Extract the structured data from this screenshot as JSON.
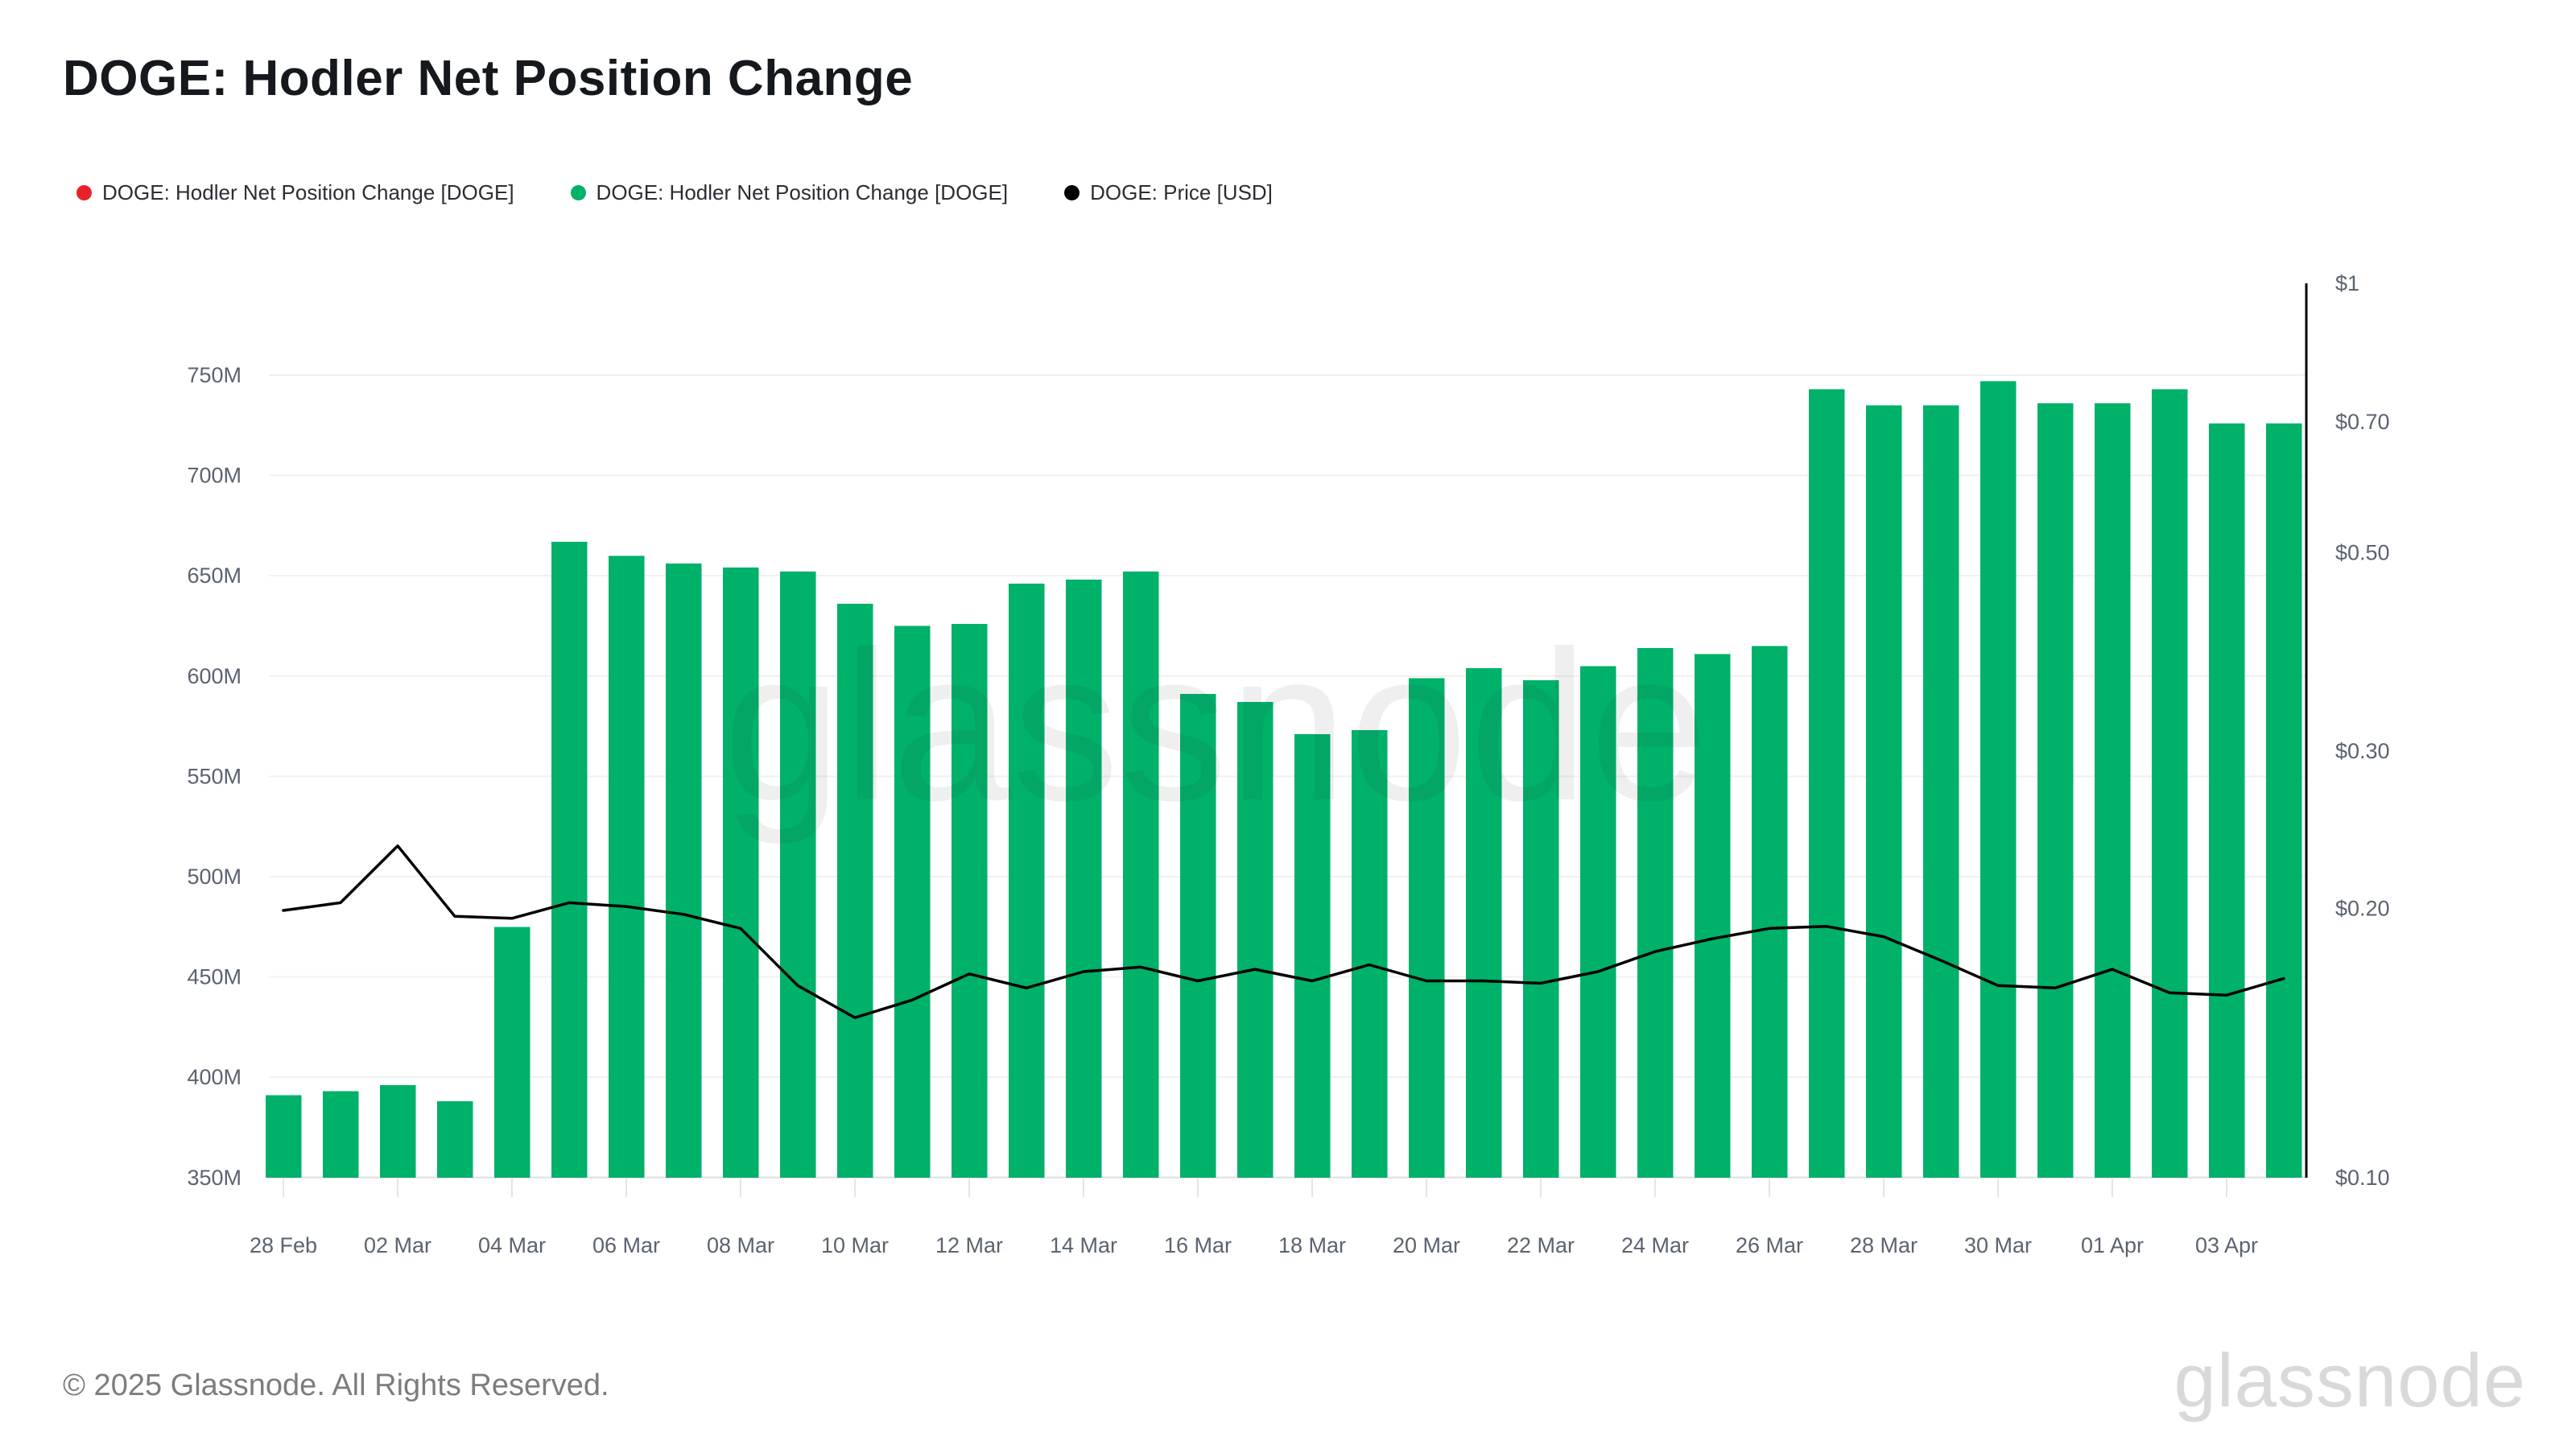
{
  "title": "DOGE: Hodler Net Position Change",
  "legend": [
    {
      "label": "DOGE: Hodler Net Position Change [DOGE]",
      "color": "#e8222a"
    },
    {
      "label": "DOGE: Hodler Net Position Change [DOGE]",
      "color": "#00b16a"
    },
    {
      "label": "DOGE: Price [USD]",
      "color": "#000000"
    }
  ],
  "watermark": {
    "center_text": "glassnode",
    "logo_text": "glassnode"
  },
  "footer": {
    "copyright": "© 2025 Glassnode. All Rights Reserved."
  },
  "colors": {
    "bar_green": "#00b16a",
    "price_line": "#000000",
    "gridline": "#f1f1f2",
    "axis_baseline": "#e3e5e7",
    "axis_text": "#5b6370",
    "right_axis_line": "#000000",
    "background": "#ffffff"
  },
  "chart_data": {
    "type": "bar",
    "title": "DOGE: Hodler Net Position Change",
    "x": [
      "28 Feb",
      "01 Mar",
      "02 Mar",
      "03 Mar",
      "04 Mar",
      "05 Mar",
      "06 Mar",
      "07 Mar",
      "08 Mar",
      "09 Mar",
      "10 Mar",
      "11 Mar",
      "12 Mar",
      "13 Mar",
      "14 Mar",
      "15 Mar",
      "16 Mar",
      "17 Mar",
      "18 Mar",
      "19 Mar",
      "20 Mar",
      "21 Mar",
      "22 Mar",
      "23 Mar",
      "24 Mar",
      "25 Mar",
      "26 Mar",
      "27 Mar",
      "28 Mar",
      "29 Mar",
      "30 Mar",
      "31 Mar",
      "01 Apr",
      "02 Apr",
      "03 Apr",
      "04 Apr"
    ],
    "x_tick_labels": [
      "28 Feb",
      "02 Mar",
      "04 Mar",
      "06 Mar",
      "08 Mar",
      "10 Mar",
      "12 Mar",
      "14 Mar",
      "16 Mar",
      "18 Mar",
      "20 Mar",
      "22 Mar",
      "24 Mar",
      "26 Mar",
      "28 Mar",
      "30 Mar",
      "01 Apr",
      "03 Apr"
    ],
    "series": [
      {
        "name": "DOGE: Hodler Net Position Change [DOGE]",
        "type": "bar",
        "yaxis": "left",
        "color": "#00b16a",
        "unit": "DOGE (millions)",
        "values_millions": [
          391,
          393,
          396,
          388,
          475,
          667,
          660,
          656,
          654,
          652,
          636,
          625,
          626,
          646,
          648,
          652,
          591,
          587,
          571,
          573,
          599,
          604,
          598,
          605,
          614,
          611,
          615,
          743,
          735,
          735,
          747,
          736,
          736,
          743,
          726,
          726
        ]
      },
      {
        "name": "DOGE: Price [USD]",
        "type": "line",
        "yaxis": "right",
        "color": "#000000",
        "unit": "USD",
        "values_usd": [
          0.199,
          0.203,
          0.235,
          0.196,
          0.195,
          0.203,
          0.201,
          0.197,
          0.19,
          0.164,
          0.151,
          0.158,
          0.169,
          0.163,
          0.17,
          0.172,
          0.166,
          0.171,
          0.166,
          0.173,
          0.166,
          0.166,
          0.165,
          0.17,
          0.179,
          0.185,
          0.19,
          0.191,
          0.186,
          0.175,
          0.164,
          0.163,
          0.171,
          0.161,
          0.16,
          0.167
        ]
      }
    ],
    "left_axis": {
      "unit": "DOGE",
      "scale": "linear",
      "tick_labels": [
        "750M",
        "700M",
        "650M",
        "600M",
        "550M",
        "500M",
        "450M",
        "400M",
        "350M"
      ],
      "tick_values_millions": [
        750,
        700,
        650,
        600,
        550,
        500,
        450,
        400,
        350
      ],
      "range_millions": [
        350,
        795
      ],
      "grid": true
    },
    "right_axis": {
      "unit": "USD",
      "scale": "log",
      "tick_labels": [
        "$1",
        "$0.70",
        "$0.50",
        "$0.30",
        "$0.20",
        "$0.10"
      ],
      "tick_values": [
        1,
        0.7,
        0.5,
        0.3,
        0.2,
        0.1
      ],
      "range": [
        0.1,
        1
      ],
      "grid": false
    },
    "legend_position": "top-left"
  }
}
